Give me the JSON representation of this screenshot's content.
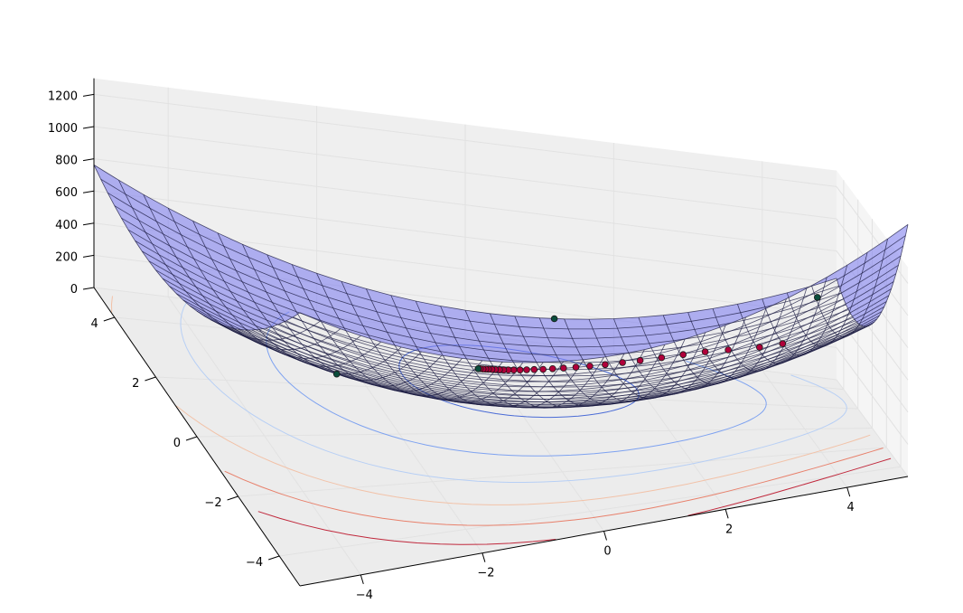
{
  "chart_data": {
    "type": "surface3d",
    "title": "",
    "xlabel": "",
    "ylabel": "",
    "zlabel": "",
    "x_ticks": [
      "−4",
      "−2",
      "0",
      "2",
      "4"
    ],
    "y_ticks": [
      "−4",
      "−2",
      "0",
      "2",
      "4"
    ],
    "z_ticks": [
      "0",
      "200",
      "400",
      "600",
      "800",
      "1000",
      "1200"
    ],
    "xlim": [
      -5,
      5
    ],
    "ylim": [
      -5,
      5
    ],
    "zlim": [
      0,
      1300
    ],
    "grid": true,
    "surface": {
      "kind": "quadratic bowl",
      "x_range": [
        -5,
        5
      ],
      "y_range": [
        -5,
        5
      ],
      "grid_lines": 30,
      "face_color": "#8080ee",
      "edge_color": "#1a1a40",
      "opacity": 0.6
    },
    "contours": {
      "offset_levels_z": [
        100,
        300,
        500,
        700,
        900,
        1100
      ],
      "colormap": "coolwarm"
    },
    "series": [
      {
        "kind": "descent-path",
        "color": "#b0003a",
        "points": [
          [
            4.0,
            2.6
          ],
          [
            3.7,
            2.8
          ],
          [
            3.3,
            3.1
          ],
          [
            3.0,
            3.25
          ],
          [
            2.7,
            3.3
          ],
          [
            2.4,
            3.3
          ],
          [
            2.1,
            3.28
          ],
          [
            1.85,
            3.25
          ],
          [
            1.6,
            3.2
          ],
          [
            1.38,
            3.16
          ],
          [
            1.18,
            3.12
          ],
          [
            1.0,
            3.08
          ],
          [
            0.84,
            3.04
          ],
          [
            0.7,
            3.0
          ],
          [
            0.57,
            2.97
          ],
          [
            0.46,
            2.94
          ],
          [
            0.36,
            2.91
          ],
          [
            0.27,
            2.89
          ],
          [
            0.19,
            2.87
          ],
          [
            0.12,
            2.85
          ],
          [
            0.06,
            2.84
          ],
          [
            0.0,
            2.83
          ],
          [
            -0.05,
            2.82
          ],
          [
            -0.1,
            2.81
          ],
          [
            -0.14,
            2.8
          ],
          [
            -0.18,
            2.79
          ],
          [
            -0.22,
            2.79
          ],
          [
            -0.25,
            2.78
          ]
        ]
      },
      {
        "kind": "marked-points",
        "color": "#0b4d3c",
        "points": [
          [
            -3.2,
            -1.0
          ],
          [
            3.6,
            -4.4
          ],
          [
            -0.25,
            2.78
          ],
          [
            1.2,
            5.0
          ]
        ]
      }
    ]
  }
}
